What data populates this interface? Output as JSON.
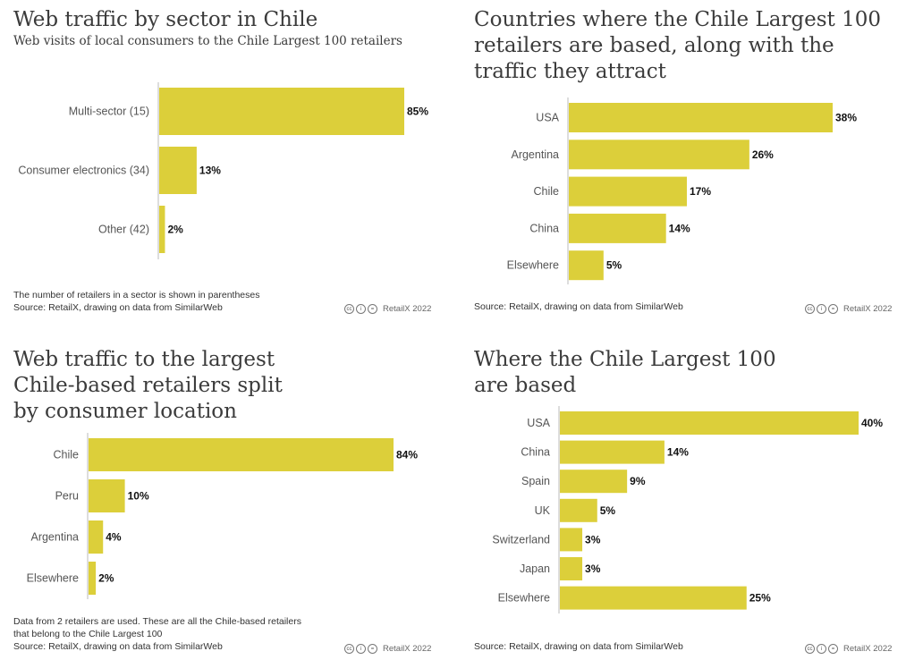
{
  "colors": {
    "bar": "#dccf3a",
    "axis": "#bbbbbb"
  },
  "credit": {
    "icons": [
      "creative-commons-icon",
      "attribution-icon",
      "no-derivatives-icon"
    ],
    "cc": "cc",
    "by": "i",
    "nd": "=",
    "text": "RetailX 2022"
  },
  "panels": {
    "p1": {
      "title": "Web traffic by sector in Chile",
      "subtitle": "Web visits of local consumers to the Chile Largest 100 retailers",
      "note1": "The number of retailers in a sector is shown in parentheses",
      "note2": "Source: RetailX, drawing on data from SimilarWeb"
    },
    "p2": {
      "title": "Countries where the Chile Largest 100\nretailers are based, along with the\ntraffic they attract",
      "note1": "Source: RetailX, drawing on data from SimilarWeb"
    },
    "p3": {
      "title": "Web traffic to the largest\nChile-based retailers split\nby consumer location",
      "note1": "Data from 2 retailers are used. These are all the Chile-based retailers",
      "note2": "that belong to the Chile Largest 100",
      "note3": "Source: RetailX, drawing on data from SimilarWeb"
    },
    "p4": {
      "title": "Where the Chile Largest 100\nare based",
      "note1": "Source: RetailX, drawing on data from SimilarWeb"
    }
  },
  "chart_data": [
    {
      "type": "bar",
      "orientation": "horizontal",
      "title": "Web traffic by sector in Chile",
      "subtitle": "Web visits of local consumers to the Chile Largest 100 retailers",
      "categories": [
        "Multi-sector (15)",
        "Consumer electronics (34)",
        "Other (42)"
      ],
      "values": [
        85,
        13,
        2
      ],
      "labels": [
        "85%",
        "13%",
        "2%"
      ],
      "unit": "%",
      "xlim": [
        0,
        85
      ],
      "grid": false
    },
    {
      "type": "bar",
      "orientation": "horizontal",
      "title": "Countries where the Chile Largest 100 retailers are based, along with the traffic they attract",
      "categories": [
        "USA",
        "Argentina",
        "Chile",
        "China",
        "Elsewhere"
      ],
      "values": [
        38,
        26,
        17,
        14,
        5
      ],
      "labels": [
        "38%",
        "26%",
        "17%",
        "14%",
        "5%"
      ],
      "unit": "%",
      "xlim": [
        0,
        38
      ],
      "grid": false
    },
    {
      "type": "bar",
      "orientation": "horizontal",
      "title": "Web traffic to the largest Chile-based retailers split by consumer location",
      "categories": [
        "Chile",
        "Peru",
        "Argentina",
        "Elsewhere"
      ],
      "values": [
        84,
        10,
        4,
        2
      ],
      "labels": [
        "84%",
        "10%",
        "4%",
        "2%"
      ],
      "unit": "%",
      "xlim": [
        0,
        84
      ],
      "grid": false
    },
    {
      "type": "bar",
      "orientation": "horizontal",
      "title": "Where the Chile Largest 100 are based",
      "categories": [
        "USA",
        "China",
        "Spain",
        "UK",
        "Switzerland",
        "Japan",
        "Elsewhere"
      ],
      "values": [
        40,
        14,
        9,
        5,
        3,
        3,
        25
      ],
      "labels": [
        "40%",
        "14%",
        "9%",
        "5%",
        "3%",
        "3%",
        "25%"
      ],
      "unit": "%",
      "xlim": [
        0,
        40
      ],
      "grid": false
    }
  ]
}
